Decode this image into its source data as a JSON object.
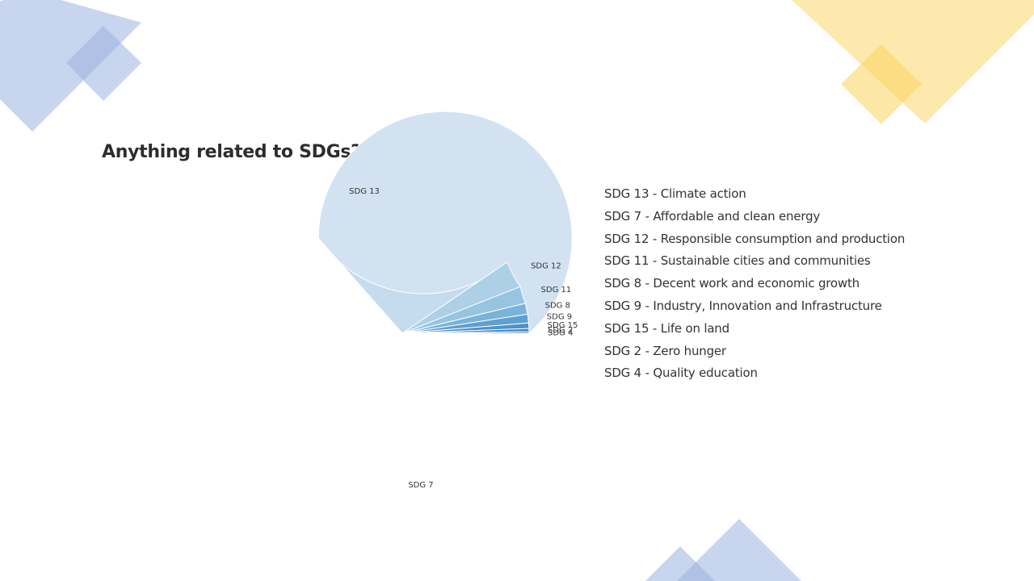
{
  "page": {
    "title": "Anything related to SDGs?"
  },
  "chart_data": {
    "type": "pie",
    "title": "Anything related to SDGs?",
    "categories": [
      "SDG 13",
      "SDG 7",
      "SDG 12",
      "SDG 11",
      "SDG 8",
      "SDG 9",
      "SDG 15",
      "SDG 2",
      "SDG 4"
    ],
    "values": [
      63.5,
      27.0,
      3.5,
      2.2,
      1.4,
      1.1,
      0.7,
      0.4,
      0.2
    ],
    "slice_colors": [
      "#d2e2f1",
      "#c5dbee",
      "#add0e6",
      "#97c4e1",
      "#7ab3d9",
      "#5e9fd0",
      "#4c93c9",
      "#3c86c1",
      "#2f78b8"
    ],
    "legend": {
      "position": "right",
      "items": [
        "SDG 13 - Climate action",
        "SDG 7 - Affordable and clean energy",
        "SDG 12 - Responsible consumption and production",
        "SDG 11 - Sustainable cities and communities",
        "SDG 8 - Decent work and economic growth",
        "SDG 9 - Industry, Innovation and Infrastructure",
        "SDG 15 - Life on land",
        "SDG 2 - Zero hunger",
        "SDG 4 - Quality education"
      ]
    }
  },
  "decoration": {
    "blue": "#9bb2e0",
    "yellow": "#fbd45e"
  }
}
